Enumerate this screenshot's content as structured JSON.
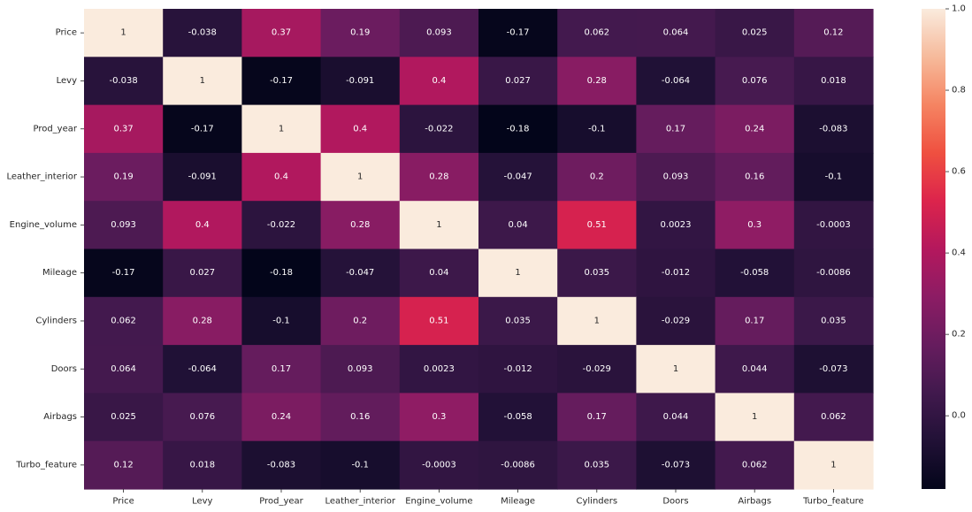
{
  "chart_data": {
    "type": "heatmap",
    "title": "",
    "xlabel": "",
    "ylabel": "",
    "categories": [
      "Price",
      "Levy",
      "Prod_year",
      "Leather_interior",
      "Engine_volume",
      "Mileage",
      "Cylinders",
      "Doors",
      "Airbags",
      "Turbo_feature"
    ],
    "cell_labels": [
      [
        "1",
        "-0.038",
        "0.37",
        "0.19",
        "0.093",
        "-0.17",
        "0.062",
        "0.064",
        "0.025",
        "0.12"
      ],
      [
        "-0.038",
        "1",
        "-0.17",
        "-0.091",
        "0.4",
        "0.027",
        "0.28",
        "-0.064",
        "0.076",
        "0.018"
      ],
      [
        "0.37",
        "-0.17",
        "1",
        "0.4",
        "-0.022",
        "-0.18",
        "-0.1",
        "0.17",
        "0.24",
        "-0.083"
      ],
      [
        "0.19",
        "-0.091",
        "0.4",
        "1",
        "0.28",
        "-0.047",
        "0.2",
        "0.093",
        "0.16",
        "-0.1"
      ],
      [
        "0.093",
        "0.4",
        "-0.022",
        "0.28",
        "1",
        "0.04",
        "0.51",
        "0.0023",
        "0.3",
        "-0.0003"
      ],
      [
        "-0.17",
        "0.027",
        "-0.18",
        "-0.047",
        "0.04",
        "1",
        "0.035",
        "-0.012",
        "-0.058",
        "-0.0086"
      ],
      [
        "0.062",
        "0.28",
        "-0.1",
        "0.2",
        "0.51",
        "0.035",
        "1",
        "-0.029",
        "0.17",
        "0.035"
      ],
      [
        "0.064",
        "-0.064",
        "0.17",
        "0.093",
        "0.0023",
        "-0.012",
        "-0.029",
        "1",
        "0.044",
        "-0.073"
      ],
      [
        "0.025",
        "0.076",
        "0.24",
        "0.16",
        "0.3",
        "-0.058",
        "0.17",
        "0.044",
        "1",
        "0.062"
      ],
      [
        "0.12",
        "0.018",
        "-0.083",
        "-0.1",
        "-0.0003",
        "-0.0086",
        "0.035",
        "-0.073",
        "0.062",
        "1"
      ]
    ],
    "vmin": -0.18,
    "vmax": 1.0,
    "colormap": "rocket",
    "colorbar": {
      "ticks": [
        0.0,
        0.2,
        0.4,
        0.6,
        0.8,
        1.0
      ],
      "tick_labels": [
        "0.0",
        "0.2",
        "0.4",
        "0.6",
        "0.8",
        "1.0"
      ]
    },
    "legend": "colorbar-right",
    "grid": false
  }
}
